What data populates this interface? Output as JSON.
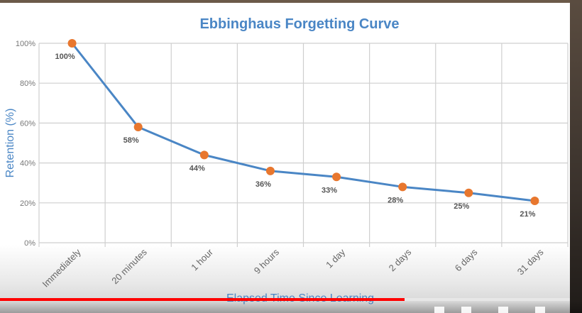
{
  "chart_data": {
    "type": "line",
    "title": "Ebbinghaus Forgetting Curve",
    "xlabel": "Elapsed Time Since Learning",
    "ylabel": "Retention (%)",
    "categories": [
      "Immediately",
      "20 minutes",
      "1 hour",
      "9 hours",
      "1 day",
      "2 days",
      "6 days",
      "31 days"
    ],
    "values": [
      100,
      58,
      44,
      36,
      33,
      28,
      25,
      21
    ],
    "data_labels": [
      "100%",
      "58%",
      "44%",
      "36%",
      "33%",
      "28%",
      "25%",
      "21%"
    ],
    "y_ticks": [
      "0%",
      "20%",
      "40%",
      "60%",
      "80%",
      "100%"
    ],
    "ylim": [
      0,
      100
    ],
    "grid": true,
    "legend": "none",
    "colors": {
      "line": "#4a86c5",
      "marker": "#e8772e",
      "title": "#4a86c5",
      "axis_label": "#4a86c5",
      "grid": "#cfcfcf",
      "label_text": "#555555"
    }
  },
  "video_player": {
    "progress": 0.71,
    "progress_color": "#ff0000"
  }
}
